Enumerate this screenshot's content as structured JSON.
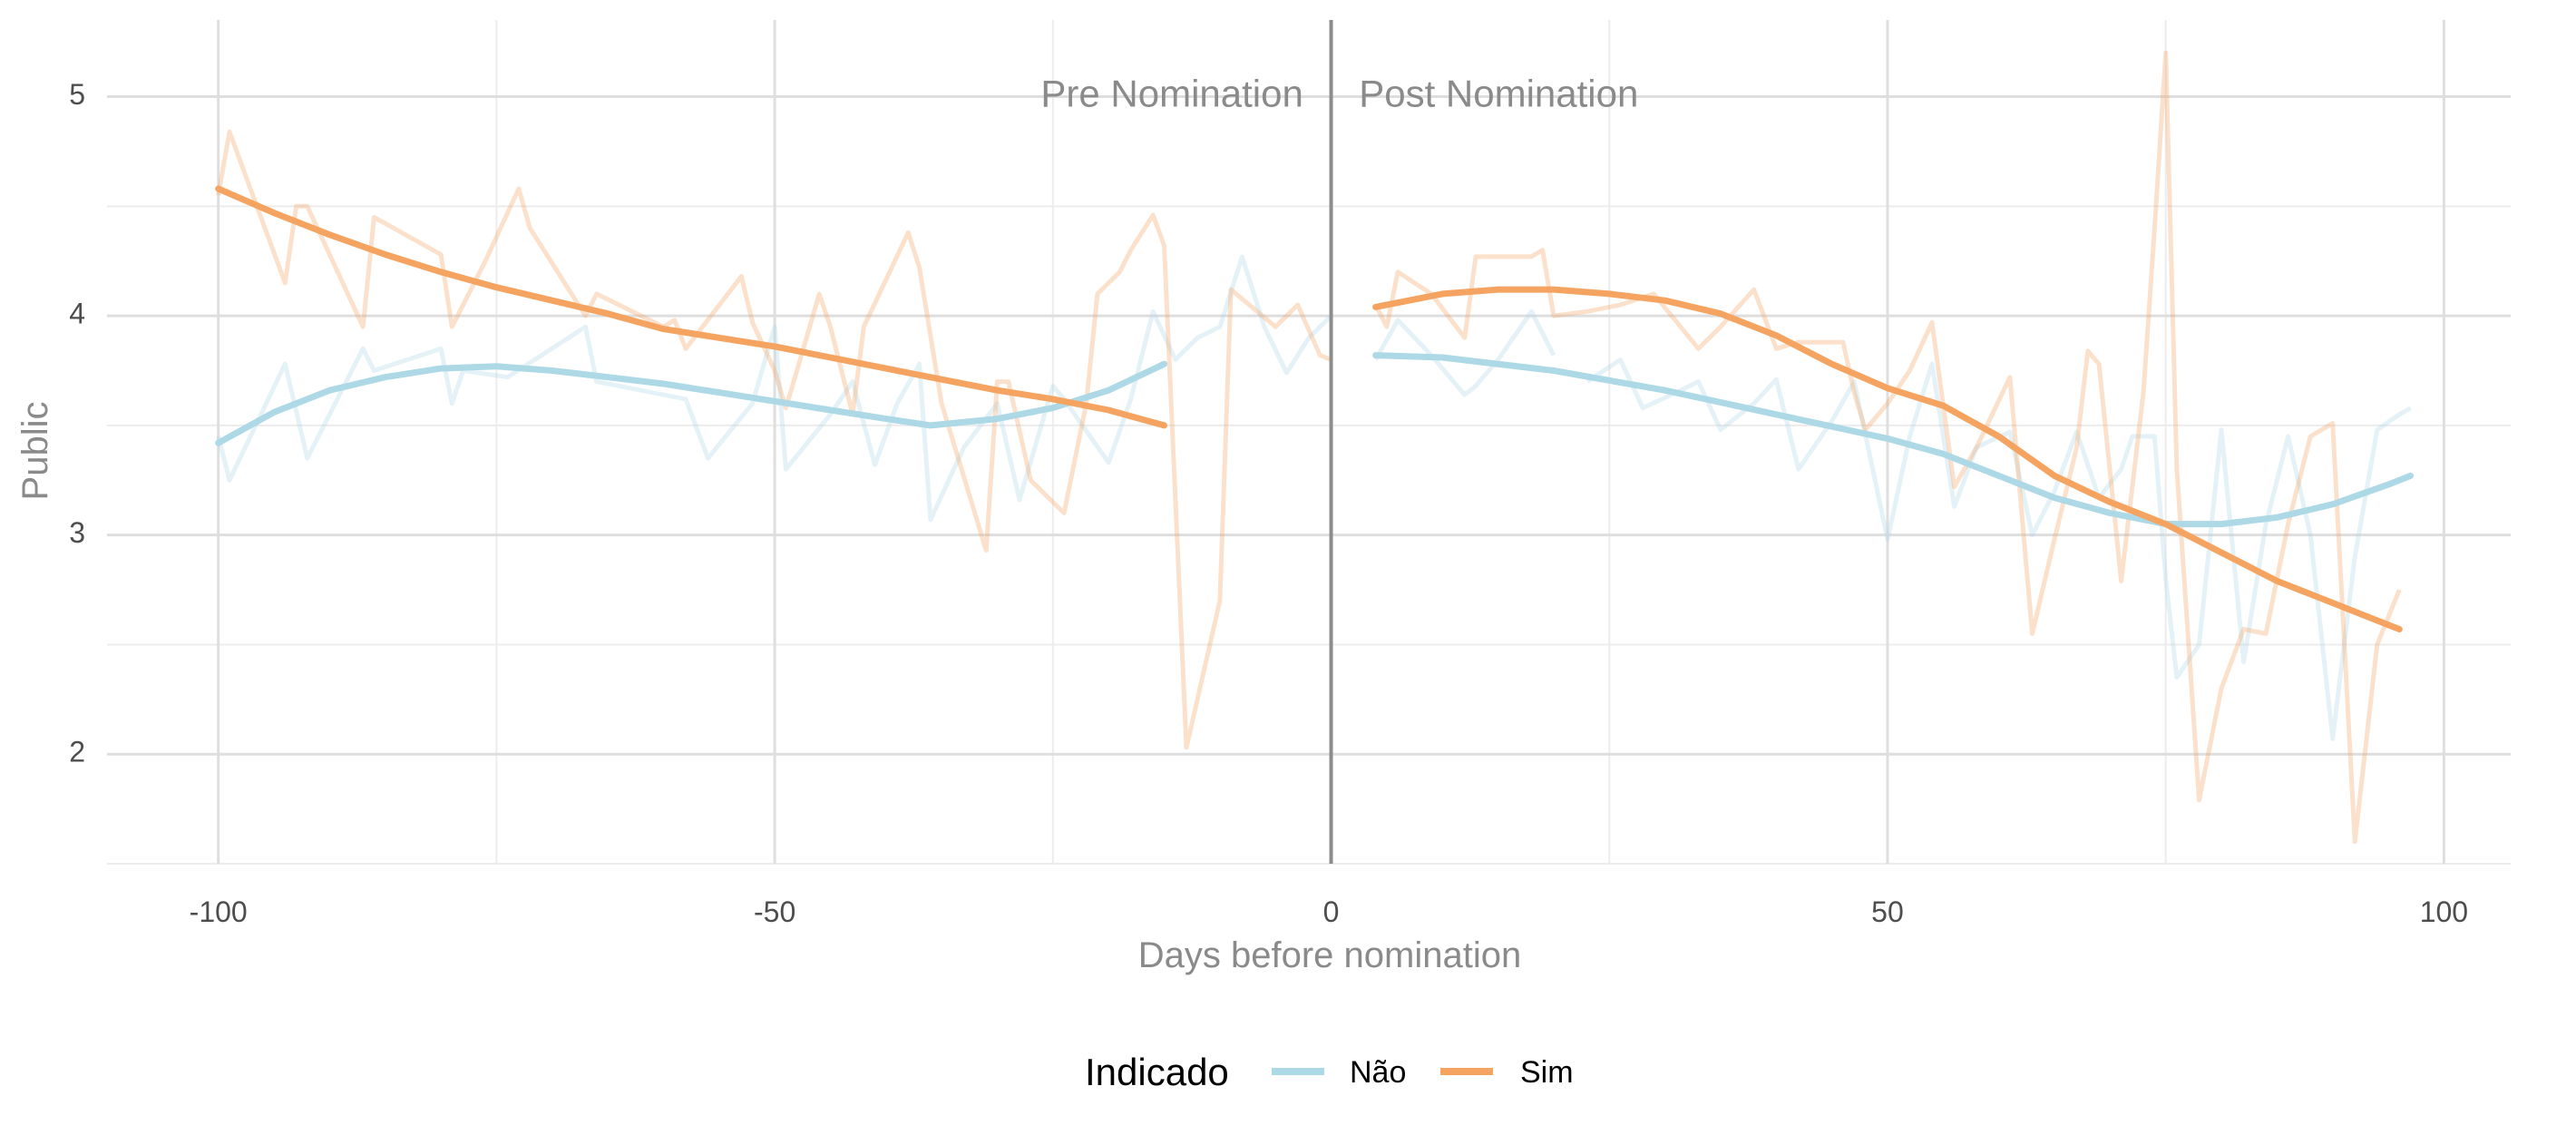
{
  "chart_data": {
    "type": "line",
    "title": "",
    "xlabel": "Days before nomination",
    "ylabel": "Public",
    "xlim": [
      -110,
      106
    ],
    "ylim": [
      1.5,
      5.35
    ],
    "x_ticks": [
      -100,
      -50,
      0,
      50,
      100
    ],
    "x_tick_labels": [
      "-100",
      "-50",
      "0",
      "50",
      "100"
    ],
    "y_ticks": [
      2,
      3,
      4,
      5
    ],
    "y_tick_labels": [
      "2",
      "3",
      "4",
      "5"
    ],
    "x_minor": [
      -75,
      -25,
      25,
      75
    ],
    "y_minor": [
      1.5,
      2.5,
      3.5,
      4.5
    ],
    "grid": true,
    "vline_x": 0,
    "annotations": {
      "pre": {
        "text": "Pre Nomination",
        "x": -2.5,
        "y": 5.0
      },
      "post": {
        "text": "Post Nomination",
        "x": 2.5,
        "y": 5.0
      }
    },
    "legend": {
      "title": "Indicado",
      "position": "bottom"
    },
    "series": [
      {
        "name": "Não",
        "color": "#ADD8E6",
        "raw_pre": {
          "x": [
            -100,
            -99,
            -94,
            -92,
            -87,
            -86,
            -80,
            -79,
            -78,
            -74,
            -67,
            -66,
            -58,
            -56,
            -52,
            -50,
            -49,
            -45,
            -43,
            -41,
            -39,
            -37,
            -36,
            -33,
            -30,
            -28,
            -25,
            -24,
            -20,
            -18,
            -16,
            -14,
            -12,
            -10,
            -8,
            -6,
            -4,
            -2,
            0
          ],
          "y": [
            3.45,
            3.25,
            3.78,
            3.35,
            3.85,
            3.75,
            3.85,
            3.6,
            3.75,
            3.72,
            3.95,
            3.7,
            3.62,
            3.35,
            3.6,
            3.95,
            3.3,
            3.55,
            3.7,
            3.32,
            3.6,
            3.78,
            3.07,
            3.4,
            3.6,
            3.16,
            3.68,
            3.62,
            3.33,
            3.62,
            4.02,
            3.8,
            3.9,
            3.95,
            4.27,
            3.95,
            3.74,
            3.9,
            4.0
          ]
        },
        "raw_post": {
          "x": [
            4,
            6,
            9,
            12,
            13,
            15,
            18,
            20
          ],
          "y": [
            3.8,
            3.98,
            3.82,
            3.64,
            3.68,
            3.8,
            4.02,
            3.82
          ]
        },
        "raw_post2": {
          "x": [
            23,
            26,
            28,
            31,
            33,
            35,
            38,
            40,
            42,
            45,
            47,
            50,
            52,
            54,
            56,
            58,
            61,
            63,
            65,
            67,
            69,
            71,
            72,
            74,
            75,
            76,
            78,
            80,
            82,
            84,
            86,
            88,
            90,
            92,
            94,
            96,
            97
          ],
          "y": [
            3.7,
            3.8,
            3.58,
            3.65,
            3.7,
            3.48,
            3.6,
            3.71,
            3.3,
            3.52,
            3.7,
            2.98,
            3.45,
            3.78,
            3.13,
            3.4,
            3.47,
            3.0,
            3.2,
            3.47,
            3.17,
            3.3,
            3.45,
            3.45,
            2.8,
            2.35,
            2.5,
            3.48,
            2.42,
            3.05,
            3.45,
            3.0,
            2.07,
            2.9,
            3.48,
            3.55,
            3.58
          ]
        },
        "smooth_pre": {
          "x": [
            -100,
            -95,
            -90,
            -85,
            -80,
            -75,
            -70,
            -65,
            -60,
            -55,
            -50,
            -45,
            -40,
            -36,
            -30,
            -25,
            -20,
            -15
          ],
          "y": [
            3.42,
            3.56,
            3.66,
            3.72,
            3.76,
            3.77,
            3.75,
            3.72,
            3.69,
            3.65,
            3.61,
            3.57,
            3.53,
            3.5,
            3.53,
            3.58,
            3.66,
            3.78
          ]
        },
        "smooth_post": {
          "x": [
            4,
            10,
            20,
            30,
            40,
            50,
            55,
            60,
            65,
            70,
            75,
            80,
            85,
            90,
            95,
            97
          ],
          "y": [
            3.82,
            3.81,
            3.75,
            3.66,
            3.55,
            3.44,
            3.37,
            3.27,
            3.17,
            3.1,
            3.05,
            3.05,
            3.08,
            3.14,
            3.23,
            3.27
          ]
        }
      },
      {
        "name": "Sim",
        "color": "#F4A460",
        "raw_pre": {
          "x": [
            -100,
            -99,
            -94,
            -93,
            -92,
            -87,
            -86,
            -80,
            -79,
            -76,
            -73,
            -72,
            -67,
            -66,
            -60,
            -59,
            -58,
            -53,
            -52,
            -50,
            -49,
            -48,
            -46,
            -45,
            -43,
            -42,
            -38,
            -37,
            -35,
            -31,
            -30,
            -29,
            -27,
            -24,
            -22,
            -21,
            -19,
            -18,
            -16,
            -15,
            -13,
            -10,
            -9,
            -5,
            -3,
            -1,
            0
          ],
          "y": [
            4.55,
            4.84,
            4.15,
            4.5,
            4.5,
            3.95,
            4.45,
            4.28,
            3.95,
            4.25,
            4.58,
            4.4,
            4.0,
            4.1,
            3.95,
            3.98,
            3.85,
            4.18,
            3.97,
            3.75,
            3.58,
            3.75,
            4.1,
            3.95,
            3.55,
            3.95,
            4.38,
            4.22,
            3.6,
            2.93,
            3.7,
            3.7,
            3.25,
            3.1,
            3.6,
            4.1,
            4.2,
            4.3,
            4.46,
            4.32,
            2.03,
            2.7,
            4.12,
            3.95,
            4.05,
            3.82,
            3.8
          ]
        },
        "raw_post": {
          "x": [
            4,
            5,
            6,
            9,
            12,
            13,
            15,
            18,
            19,
            20,
            23,
            26,
            29,
            33,
            35,
            38,
            40,
            42,
            45,
            46,
            47,
            48,
            50,
            52,
            54,
            56,
            58,
            61,
            63,
            65,
            67,
            68,
            69,
            71,
            73,
            74,
            75,
            76,
            78,
            80,
            82,
            84,
            86,
            88,
            90,
            92,
            94,
            96
          ],
          "y": [
            4.05,
            3.95,
            4.2,
            4.1,
            3.9,
            4.27,
            4.27,
            4.27,
            4.3,
            4.0,
            4.02,
            4.05,
            4.1,
            3.85,
            3.95,
            4.12,
            3.85,
            3.88,
            3.88,
            3.88,
            3.65,
            3.48,
            3.6,
            3.75,
            3.97,
            3.22,
            3.4,
            3.72,
            2.55,
            2.98,
            3.4,
            3.84,
            3.78,
            2.79,
            3.65,
            4.4,
            5.2,
            3.3,
            1.79,
            2.3,
            2.57,
            2.55,
            3.05,
            3.45,
            3.51,
            1.6,
            2.5,
            2.75
          ]
        },
        "smooth_pre": {
          "x": [
            -100,
            -95,
            -90,
            -85,
            -80,
            -75,
            -70,
            -65,
            -60,
            -55,
            -50,
            -45,
            -40,
            -35,
            -30,
            -25,
            -20,
            -15
          ],
          "y": [
            4.58,
            4.47,
            4.37,
            4.28,
            4.2,
            4.13,
            4.07,
            4.01,
            3.94,
            3.9,
            3.86,
            3.81,
            3.76,
            3.71,
            3.66,
            3.62,
            3.57,
            3.5
          ]
        },
        "smooth_post": {
          "x": [
            4,
            10,
            15,
            20,
            25,
            30,
            35,
            40,
            45,
            50,
            55,
            60,
            65,
            70,
            75,
            80,
            85,
            90,
            95,
            96
          ],
          "y": [
            4.04,
            4.1,
            4.12,
            4.12,
            4.1,
            4.07,
            4.01,
            3.91,
            3.78,
            3.67,
            3.59,
            3.45,
            3.27,
            3.15,
            3.05,
            2.92,
            2.79,
            2.69,
            2.59,
            2.57
          ]
        }
      }
    ]
  }
}
